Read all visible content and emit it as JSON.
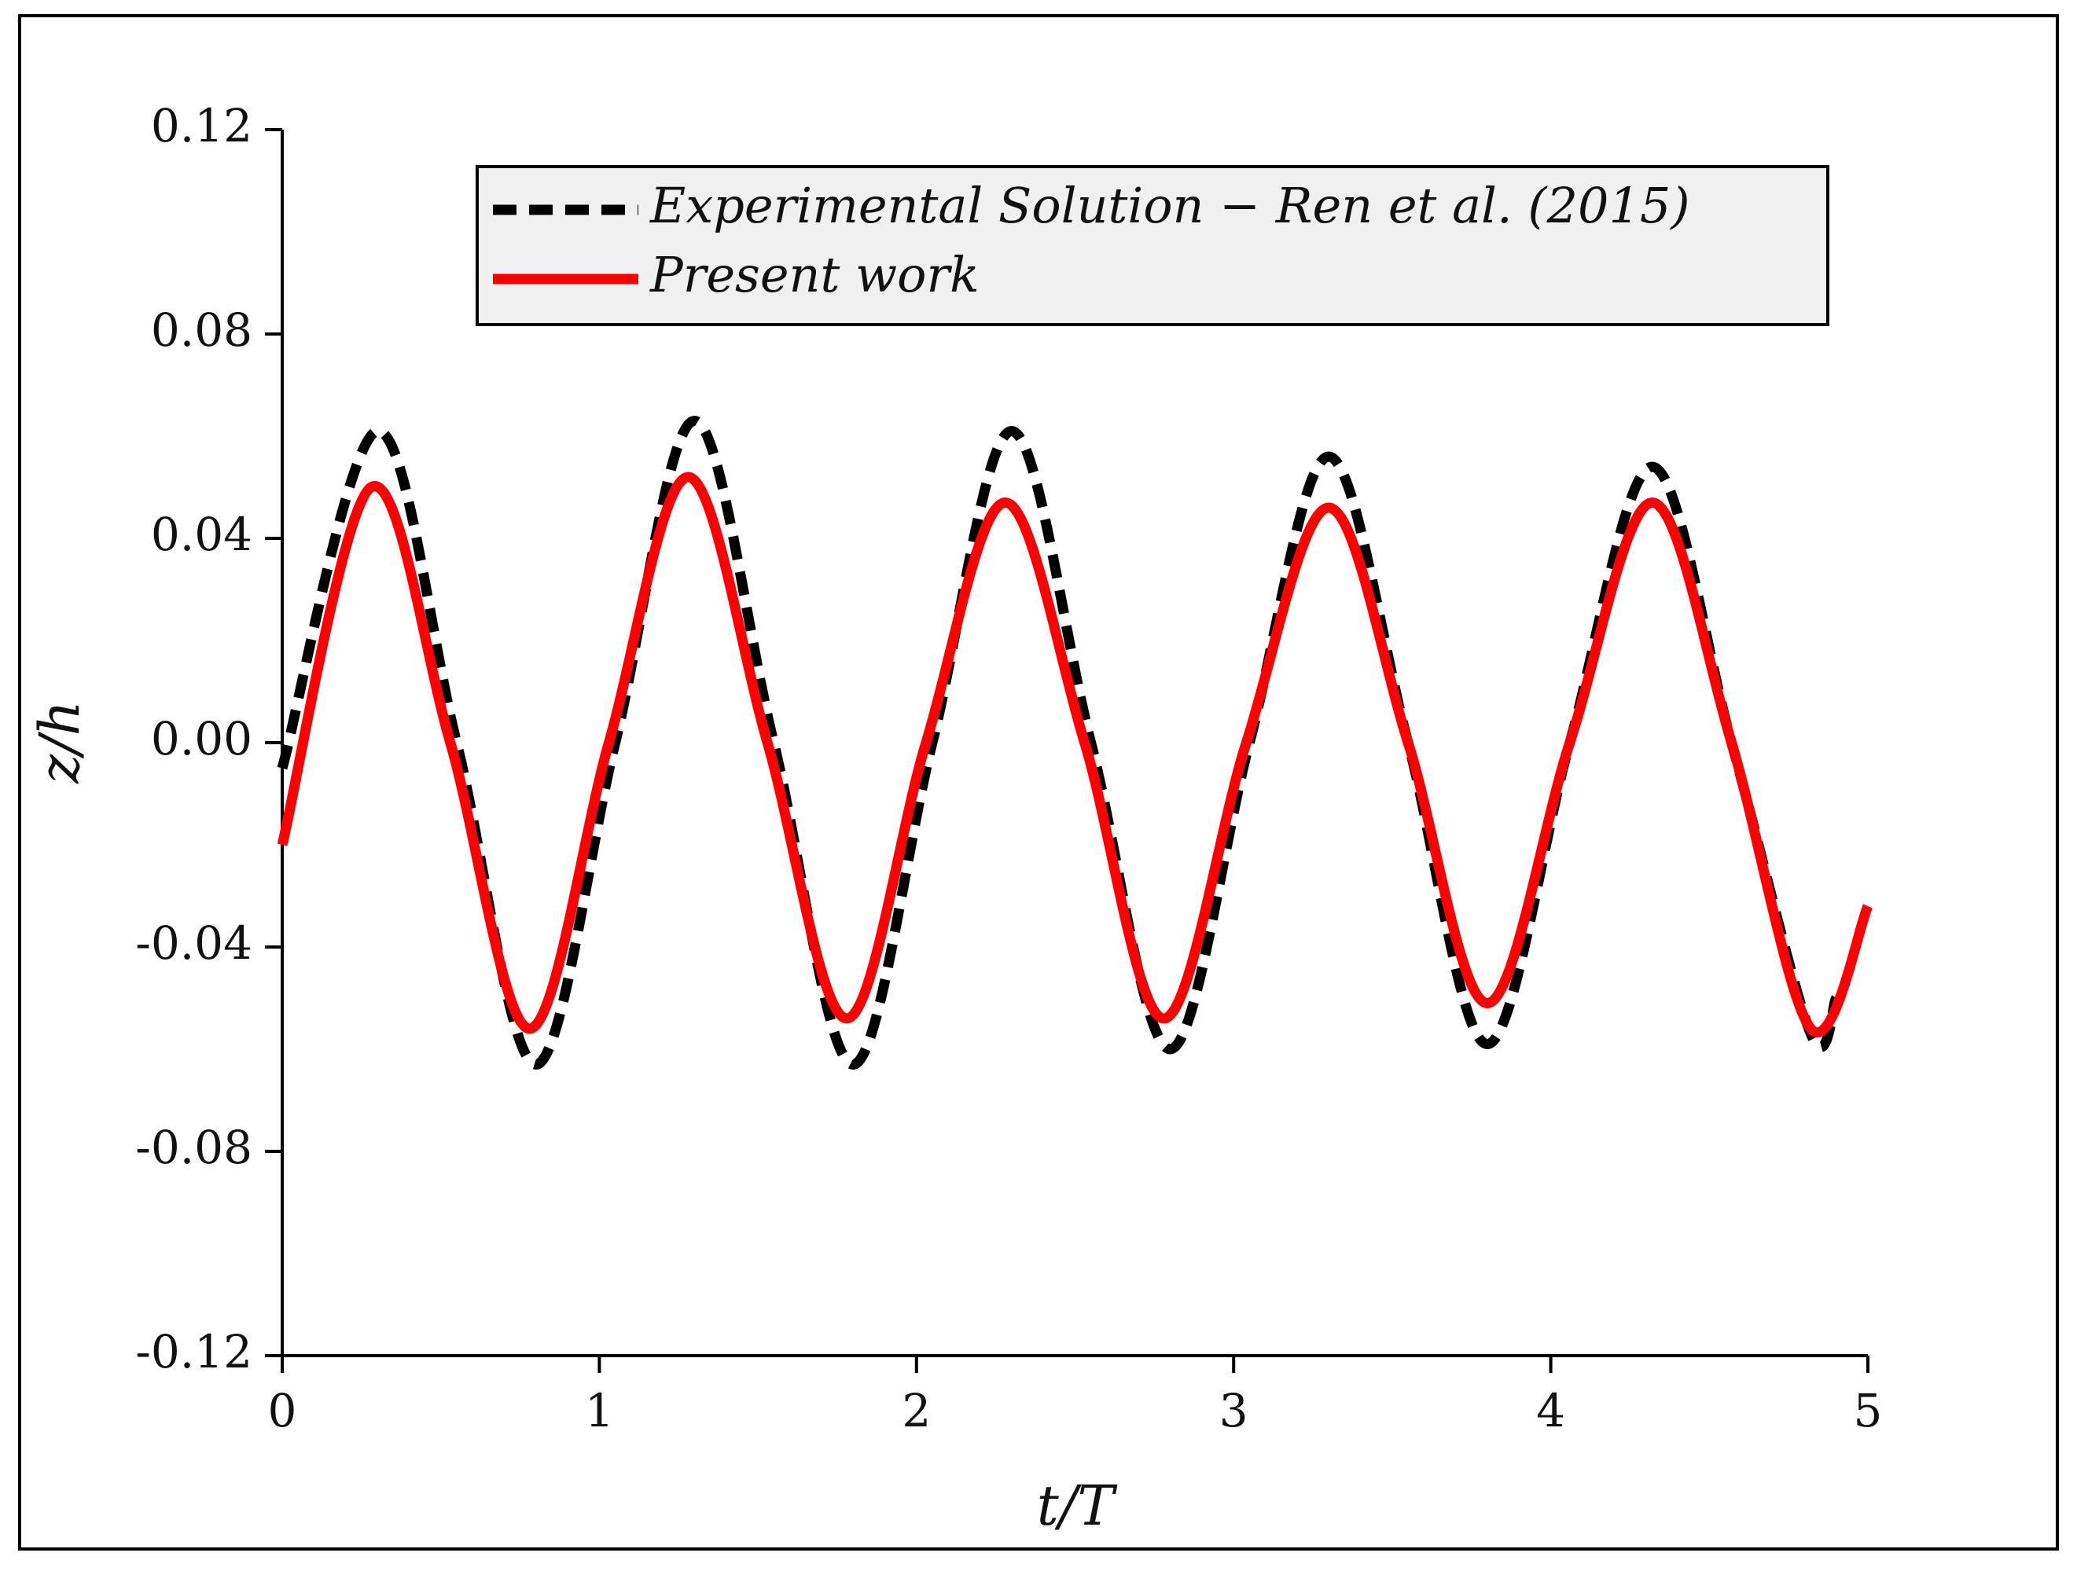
{
  "chart_data": {
    "type": "line",
    "xlabel": "t/T",
    "ylabel": "z/h",
    "xlim": [
      0,
      5
    ],
    "ylim": [
      -0.12,
      0.12
    ],
    "xticks": [
      0,
      1,
      2,
      3,
      4,
      5
    ],
    "yticks": [
      -0.12,
      -0.08,
      -0.04,
      {
        "value": 0,
        "label": "0.00"
      },
      0.04,
      0.08,
      0.12
    ],
    "grid": false,
    "legend": "top",
    "series": [
      {
        "name": "Experimental Solution − Ren et al. (2015)",
        "color": "#000000",
        "dashed": true,
        "x": [
          0,
          0.3,
          0.55,
          0.8,
          1.05,
          1.3,
          1.55,
          1.8,
          2.05,
          2.3,
          2.55,
          2.8,
          3.05,
          3.3,
          3.55,
          3.8,
          4.06,
          4.32,
          4.57,
          4.82,
          4.9
        ],
        "values": [
          -0.005,
          0.061,
          0,
          -0.063,
          0,
          0.063,
          0,
          -0.063,
          0,
          0.061,
          0,
          -0.06,
          0,
          0.056,
          0,
          -0.059,
          0,
          0.054,
          0,
          -0.057,
          -0.05
        ]
      },
      {
        "name": "Present work",
        "color": "#ff0000",
        "dashed": false,
        "x": [
          0,
          0.28,
          0.53,
          0.78,
          1.03,
          1.28,
          1.53,
          1.78,
          2.03,
          2.28,
          2.53,
          2.78,
          3.04,
          3.3,
          3.55,
          3.8,
          4.06,
          4.32,
          4.57,
          4.82,
          5.0
        ],
        "values": [
          -0.02,
          0.05,
          0,
          -0.056,
          0,
          0.052,
          0,
          -0.054,
          0,
          0.047,
          0,
          -0.054,
          0,
          0.046,
          0,
          -0.051,
          0,
          0.047,
          0,
          -0.056,
          -0.032
        ]
      }
    ]
  }
}
